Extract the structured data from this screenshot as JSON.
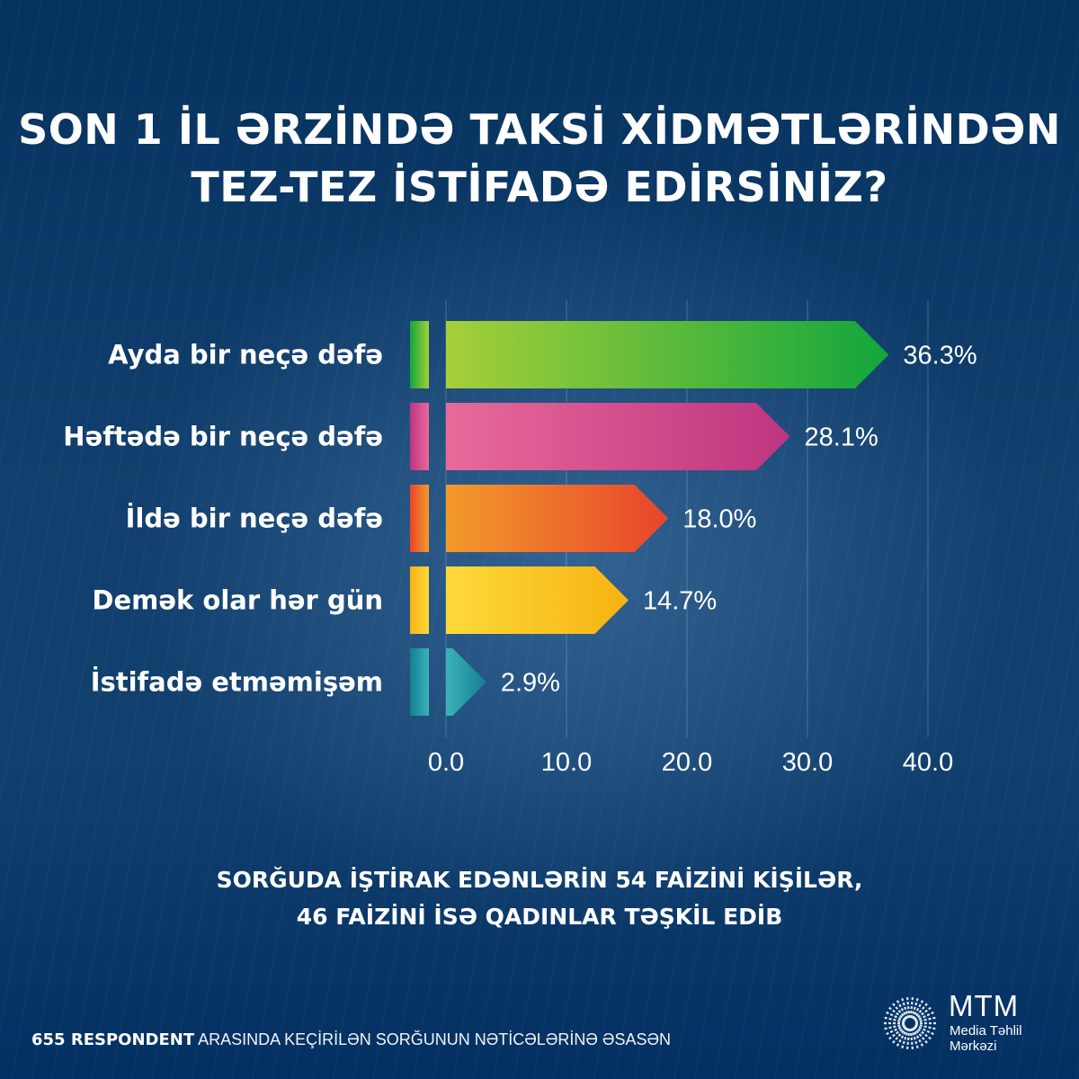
{
  "title": {
    "line1": "SON 1 İL ƏRZİNDƏ TAKSİ XİDMƏTLƏRİNDƏN",
    "line2": "TEZ-TEZ İSTİFADƏ EDİRSİNİZ?"
  },
  "chart_data": {
    "type": "bar",
    "orientation": "horizontal",
    "title": "SON 1 İL ƏRZİNDƏ TAKSİ XİDMƏTLƏRİNDƏN TEZ-TEZ İSTİFADƏ EDİRSİNİZ?",
    "categories": [
      "Ayda bir neçə dəfə",
      "Həftədə bir neçə dəfə",
      "İldə bir neçə dəfə",
      "Demək olar hər gün",
      "İstifadə etməmişəm"
    ],
    "values": [
      36.3,
      28.1,
      18.0,
      14.7,
      2.9
    ],
    "value_labels": [
      "36.3%",
      "28.1%",
      "18.0%",
      "14.7%",
      "2.9%"
    ],
    "colors": [
      [
        "#a6cf3a",
        "#12a63c"
      ],
      [
        "#e86a9a",
        "#bd3580"
      ],
      [
        "#f39a2c",
        "#e8442b"
      ],
      [
        "#fcd93a",
        "#f7b312"
      ],
      [
        "#3cb3b9",
        "#137f93"
      ]
    ],
    "xticks": [
      0,
      10,
      20,
      30,
      40
    ],
    "xtick_labels": [
      "0.0",
      "10.0",
      "20.0",
      "30.0",
      "40.0"
    ],
    "xlim": [
      0,
      40
    ],
    "xlabel": "",
    "ylabel": "",
    "grid": true,
    "legend": "none"
  },
  "note": {
    "line1": "SORĞUDA İŞTİRAK EDƏNLƏRİN 54 FAİZİNİ KİŞİLƏR,",
    "line2": "46 FAİZİNİ İSƏ QADINLAR TƏŞKİL EDİB"
  },
  "footer": {
    "bold": "655 RESPONDENT",
    "rest": "ARASINDA KEÇİRİLƏN SORĞUNUN NƏTİCƏLƏRİNƏ ƏSASƏN"
  },
  "logo": {
    "name": "MTM",
    "sub_line1": "Media Təhlil",
    "sub_line2": "Mərkəzi"
  }
}
